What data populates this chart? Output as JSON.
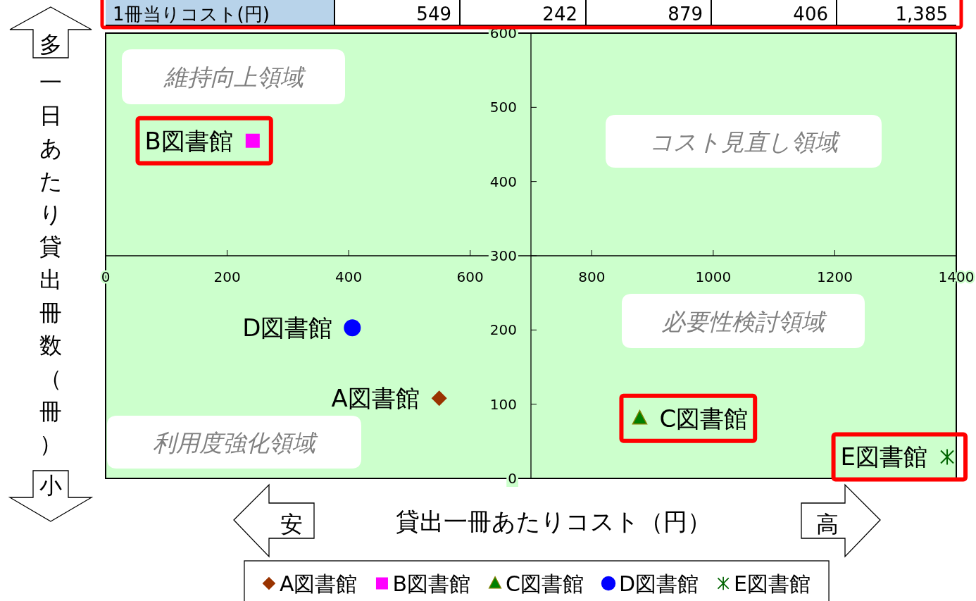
{
  "chart_data": {
    "type": "scatter",
    "xlabel": "貸出一冊あたりコスト（円）",
    "ylabel": "一日あたり貸出冊数（冊）",
    "xlim": [
      0,
      1400
    ],
    "xticks": [
      0,
      200,
      400,
      600,
      800,
      1000,
      1200,
      1400
    ],
    "ylim": [
      0,
      600
    ],
    "yticks": [
      0,
      100,
      200,
      300,
      400,
      500,
      600
    ],
    "legend": "bottom",
    "series": [
      {
        "name": "A図書館",
        "color": "#993300",
        "marker": "diamond",
        "x": [
          549
        ],
        "values": [
          108
        ]
      },
      {
        "name": "B図書館",
        "color": "#ff00ff",
        "marker": "square",
        "x": [
          242
        ],
        "values": [
          455
        ]
      },
      {
        "name": "C図書館",
        "color": "#008000",
        "marker": "triangle",
        "x": [
          879
        ],
        "values": [
          81
        ]
      },
      {
        "name": "D図書館",
        "color": "#0000ff",
        "marker": "circle",
        "x": [
          406
        ],
        "values": [
          203
        ]
      },
      {
        "name": "E図書館",
        "color": "#006400",
        "marker": "cross",
        "x": [
          1385
        ],
        "values": [
          29
        ]
      }
    ],
    "annotations": [
      "1冊当りコスト(円)",
      "549",
      "242",
      "879",
      "406",
      "1,385",
      "維持向上領域",
      "コスト見直し領域",
      "必要性検討領域",
      "利用度強化領域",
      "多",
      "小",
      "安",
      "高"
    ]
  }
}
